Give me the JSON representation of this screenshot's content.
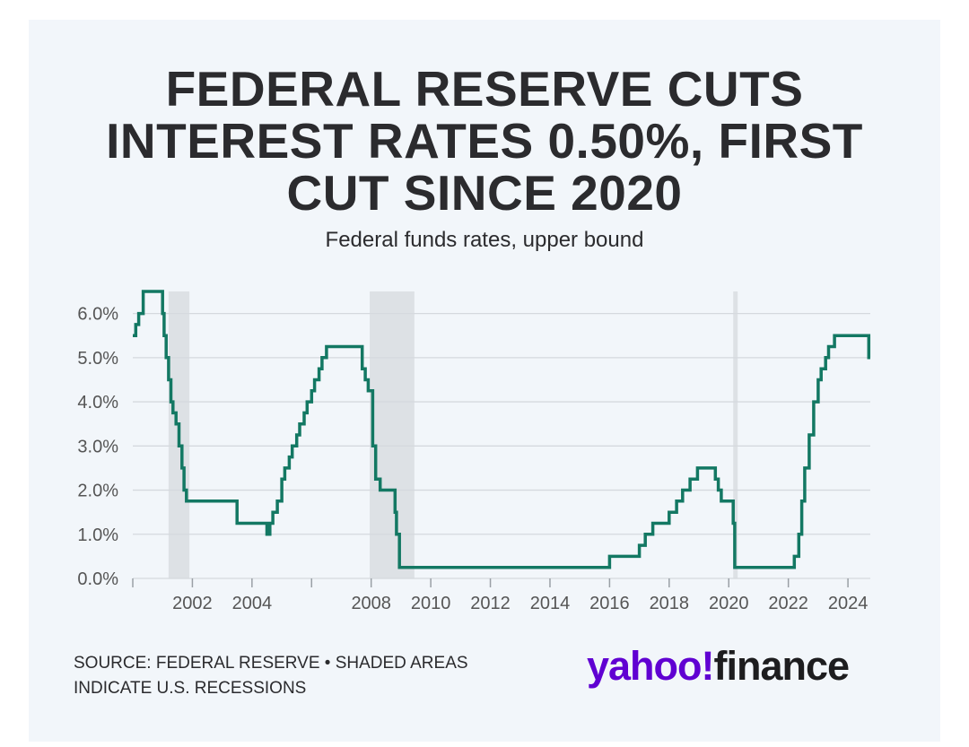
{
  "header": {
    "title_lines": [
      "FEDERAL RESERVE CUTS",
      "INTEREST RATES 0.50%, FIRST",
      "CUT SINCE 2020"
    ],
    "subtitle": "Federal funds rates, upper bound"
  },
  "footer": {
    "source_lines": [
      "SOURCE: FEDERAL RESERVE • SHADED AREAS",
      "INDICATE U.S. RECESSIONS"
    ]
  },
  "logo": {
    "brand": "yahoo!",
    "product": "finance"
  },
  "colors": {
    "line": "#137863",
    "recession": "#dde1e5",
    "grid": "#d5d9de",
    "logo_purple": "#6001d2"
  },
  "chart_data": {
    "type": "line",
    "title": "FEDERAL RESERVE CUTS INTEREST RATES 0.50%, FIRST CUT SINCE 2020",
    "subtitle": "Federal funds rates, upper bound",
    "xlabel": "",
    "ylabel": "",
    "step": true,
    "xlim": [
      2000.0,
      2024.75
    ],
    "ylim": [
      0,
      6.5
    ],
    "grid": true,
    "y_ticks": [
      {
        "value": 0,
        "label": "0.0%"
      },
      {
        "value": 1,
        "label": "1.0%"
      },
      {
        "value": 2,
        "label": "2.0%"
      },
      {
        "value": 3,
        "label": "3.0%"
      },
      {
        "value": 4,
        "label": "4.0%"
      },
      {
        "value": 5,
        "label": "5.0%"
      },
      {
        "value": 6,
        "label": "6.0%"
      }
    ],
    "x_ticks": [
      {
        "value": 2002,
        "label": "2002"
      },
      {
        "value": 2004,
        "label": "2004"
      },
      {
        "value": 2008,
        "label": "2008"
      },
      {
        "value": 2010,
        "label": "2010"
      },
      {
        "value": 2012,
        "label": "2012"
      },
      {
        "value": 2014,
        "label": "2014"
      },
      {
        "value": 2016,
        "label": "2016"
      },
      {
        "value": 2018,
        "label": "2018"
      },
      {
        "value": 2020,
        "label": "2020"
      },
      {
        "value": 2022,
        "label": "2022"
      },
      {
        "value": 2024,
        "label": "2024"
      }
    ],
    "minor_x_ticks": [
      2000,
      2006
    ],
    "recessions": [
      {
        "start": 2001.2,
        "end": 2001.9
      },
      {
        "start": 2007.95,
        "end": 2009.45
      },
      {
        "start": 2020.15,
        "end": 2020.3
      }
    ],
    "series": [
      {
        "x": [
          2000.0,
          2000.1,
          2000.2,
          2000.35,
          2001.0,
          2001.05,
          2001.12,
          2001.2,
          2001.28,
          2001.35,
          2001.45,
          2001.55,
          2001.65,
          2001.72,
          2001.8,
          2001.9,
          2002.9,
          2003.5,
          2004.5,
          2004.6,
          2004.7,
          2004.85,
          2005.0,
          2005.1,
          2005.25,
          2005.35,
          2005.5,
          2005.6,
          2005.75,
          2005.85,
          2006.0,
          2006.1,
          2006.25,
          2006.35,
          2006.5,
          2007.7,
          2007.8,
          2007.9,
          2008.05,
          2008.15,
          2008.3,
          2008.8,
          2008.85,
          2008.95,
          2016.0,
          2017.0,
          2017.2,
          2017.45,
          2018.0,
          2018.25,
          2018.45,
          2018.7,
          2018.95,
          2019.55,
          2019.65,
          2019.75,
          2020.15,
          2020.2,
          2022.2,
          2022.35,
          2022.45,
          2022.55,
          2022.7,
          2022.85,
          2023.0,
          2023.1,
          2023.25,
          2023.35,
          2023.55,
          2024.7,
          2024.75
        ],
        "y": [
          5.5,
          5.75,
          6.0,
          6.5,
          6.0,
          5.5,
          5.0,
          4.5,
          4.0,
          3.75,
          3.5,
          3.0,
          2.5,
          2.0,
          1.75,
          1.75,
          1.75,
          1.25,
          1.0,
          1.25,
          1.5,
          1.75,
          2.25,
          2.5,
          2.75,
          3.0,
          3.25,
          3.5,
          3.75,
          4.0,
          4.25,
          4.5,
          4.75,
          5.0,
          5.25,
          4.75,
          4.5,
          4.25,
          3.0,
          2.25,
          2.0,
          1.5,
          1.0,
          0.25,
          0.5,
          0.75,
          1.0,
          1.25,
          1.5,
          1.75,
          2.0,
          2.25,
          2.5,
          2.25,
          2.0,
          1.75,
          1.25,
          0.25,
          0.5,
          1.0,
          1.75,
          2.5,
          3.25,
          4.0,
          4.5,
          4.75,
          5.0,
          5.25,
          5.5,
          5.0,
          5.0
        ]
      }
    ]
  }
}
